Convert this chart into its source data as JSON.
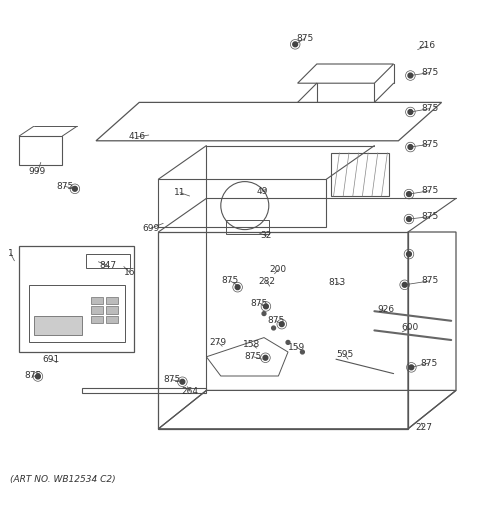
{
  "footer": "(ART NO. WB12534 C2)",
  "bg_color": "#ffffff",
  "line_color": "#555555",
  "text_color": "#333333"
}
